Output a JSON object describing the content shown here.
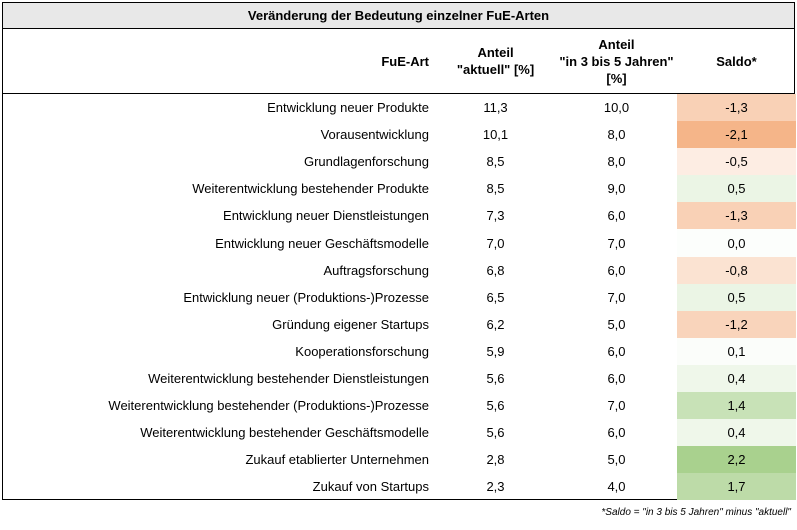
{
  "chart_data": {
    "type": "table",
    "title": "Veränderung der Bedeutung einzelner FuE-Arten",
    "columns": [
      "FuE-Art",
      "Anteil\n\"aktuell\" [%]",
      "Anteil\n\"in 3 bis 5 Jahren\"\n[%]",
      "Saldo*"
    ],
    "rows": [
      {
        "label": "Entwicklung neuer Produkte",
        "aktuell": "11,3",
        "zukunft": "10,0",
        "saldo": "-1,3",
        "saldo_value": -1.3
      },
      {
        "label": "Vorausentwicklung",
        "aktuell": "10,1",
        "zukunft": "8,0",
        "saldo": "-2,1",
        "saldo_value": -2.1
      },
      {
        "label": "Grundlagenforschung",
        "aktuell": "8,5",
        "zukunft": "8,0",
        "saldo": "-0,5",
        "saldo_value": -0.5
      },
      {
        "label": "Weiterentwicklung bestehender Produkte",
        "aktuell": "8,5",
        "zukunft": "9,0",
        "saldo": "0,5",
        "saldo_value": 0.5
      },
      {
        "label": "Entwicklung neuer Dienstleistungen",
        "aktuell": "7,3",
        "zukunft": "6,0",
        "saldo": "-1,3",
        "saldo_value": -1.3
      },
      {
        "label": "Entwicklung neuer Geschäftsmodelle",
        "aktuell": "7,0",
        "zukunft": "7,0",
        "saldo": "0,0",
        "saldo_value": 0.0
      },
      {
        "label": "Auftragsforschung",
        "aktuell": "6,8",
        "zukunft": "6,0",
        "saldo": "-0,8",
        "saldo_value": -0.8
      },
      {
        "label": "Entwicklung neuer (Produktions-)Prozesse",
        "aktuell": "6,5",
        "zukunft": "7,0",
        "saldo": "0,5",
        "saldo_value": 0.5
      },
      {
        "label": "Gründung eigener Startups",
        "aktuell": "6,2",
        "zukunft": "5,0",
        "saldo": "-1,2",
        "saldo_value": -1.2
      },
      {
        "label": "Kooperationsforschung",
        "aktuell": "5,9",
        "zukunft": "6,0",
        "saldo": "0,1",
        "saldo_value": 0.1
      },
      {
        "label": "Weiterentwicklung bestehender Dienstleistungen",
        "aktuell": "5,6",
        "zukunft": "6,0",
        "saldo": "0,4",
        "saldo_value": 0.4
      },
      {
        "label": "Weiterentwicklung bestehender (Produktions-)Prozesse",
        "aktuell": "5,6",
        "zukunft": "7,0",
        "saldo": "1,4",
        "saldo_value": 1.4
      },
      {
        "label": "Weiterentwicklung bestehender Geschäftsmodelle",
        "aktuell": "5,6",
        "zukunft": "6,0",
        "saldo": "0,4",
        "saldo_value": 0.4
      },
      {
        "label": "Zukauf etablierter Unternehmen",
        "aktuell": "2,8",
        "zukunft": "5,0",
        "saldo": "2,2",
        "saldo_value": 2.2
      },
      {
        "label": "Zukauf von Startups",
        "aktuell": "2,3",
        "zukunft": "4,0",
        "saldo": "1,7",
        "saldo_value": 1.7
      }
    ],
    "footnote": "*Saldo = \"in 3 bis 5 Jahren\" minus \"aktuell\"",
    "colors": {
      "negative": "#f4b183",
      "neutral": "#ffffff",
      "positive": "#a9d18e",
      "title_bg": "#e8e8e8"
    }
  }
}
